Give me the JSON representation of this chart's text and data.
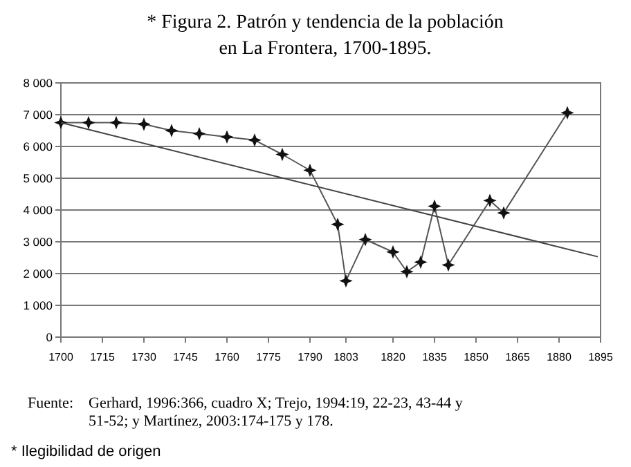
{
  "chart_data": {
    "type": "line",
    "title": "* Figura 2. Patrón y tendencia de la población en La Frontera, 1700-1895.",
    "x": [
      1700,
      1710,
      1720,
      1730,
      1740,
      1750,
      1760,
      1770,
      1780,
      1790,
      1800,
      1803,
      1810,
      1820,
      1825,
      1830,
      1835,
      1840,
      1855,
      1860,
      1883
    ],
    "series": [
      {
        "color": "#555555",
        "marker": "diamond",
        "values": [
          6750,
          6750,
          6750,
          6700,
          6500,
          6400,
          6300,
          6200,
          5750,
          5250,
          3550,
          1770,
          3070,
          2680,
          2060,
          2360,
          4120,
          2270,
          4300,
          3910,
          7060
        ]
      },
      {
        "type": "line",
        "color": "#444444",
        "marker": "none",
        "x": [
          1700,
          1894
        ],
        "values": [
          6750,
          2530
        ]
      }
    ],
    "xlim": [
      1700,
      1895
    ],
    "xticks": [
      1700,
      1715,
      1730,
      1745,
      1760,
      1775,
      1790,
      1803,
      1820,
      1835,
      1850,
      1865,
      1880,
      1895
    ],
    "ylim": [
      0,
      8000
    ],
    "yticks": [
      {
        "value": 0,
        "label": "0"
      },
      {
        "value": 1000,
        "label": "1 000"
      },
      {
        "value": 2000,
        "label": "2 000"
      },
      {
        "value": 3000,
        "label": "3 000"
      },
      {
        "value": 4000,
        "label": "4 000"
      },
      {
        "value": 5000,
        "label": "5 000"
      },
      {
        "value": 6000,
        "label": "6 000"
      },
      {
        "value": 7000,
        "label": "7 000"
      },
      {
        "value": 8000,
        "label": "8 000"
      }
    ],
    "grid": "y",
    "annotations": [
      "Fuente: Gerhard, 1996:366, cuadro X; Trejo, 1994:19, 22-23, 43-44 y 51-52; y Martínez, 2003:174-175 y 178.",
      "* Ilegibilidad de origen"
    ]
  }
}
